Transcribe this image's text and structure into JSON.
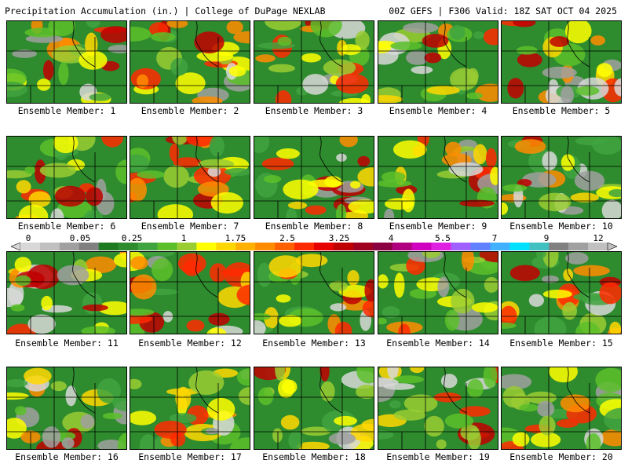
{
  "header": {
    "title_left": "Precipitation Accumulation (in.) | College of DuPage NEXLAB",
    "title_right": "00Z GEFS | F306 Valid: 18Z SAT OCT 04 2025"
  },
  "legend": {
    "tick_labels": [
      "0",
      "0.05",
      "0.25",
      "1",
      "1.75",
      "2.5",
      "3.25",
      "4",
      "5.5",
      "7",
      "9",
      "12"
    ],
    "colors": [
      "#d8d8d8",
      "#c0c0c0",
      "#a0a0a0",
      "#808080",
      "#1e7a1e",
      "#2e8b2e",
      "#3fa33f",
      "#5cbf2a",
      "#9acd32",
      "#ffff00",
      "#ffd700",
      "#ffb000",
      "#ff8c00",
      "#ff6000",
      "#ff2a00",
      "#e60000",
      "#c00000",
      "#a00020",
      "#8b0040",
      "#b00080",
      "#d000c0",
      "#e020e0",
      "#a060ff",
      "#6080ff",
      "#40b0ff",
      "#00e0ff",
      "#40c0c0",
      "#808080",
      "#a0a0a0",
      "#c0c0c0"
    ]
  },
  "panels": [
    {
      "label": "Ensemble Member: 1",
      "member": 1
    },
    {
      "label": "Ensemble Member: 2",
      "member": 2
    },
    {
      "label": "Ensemble Member: 3",
      "member": 3
    },
    {
      "label": "Ensemble Member: 4",
      "member": 4
    },
    {
      "label": "Ensemble Member: 5",
      "member": 5
    },
    {
      "label": "Ensemble Member: 6",
      "member": 6
    },
    {
      "label": "Ensemble Member: 7",
      "member": 7
    },
    {
      "label": "Ensemble Member: 8",
      "member": 8
    },
    {
      "label": "Ensemble Member: 9",
      "member": 9
    },
    {
      "label": "Ensemble Member: 10",
      "member": 10
    },
    {
      "label": "Ensemble Member: 11",
      "member": 11
    },
    {
      "label": "Ensemble Member: 12",
      "member": 12
    },
    {
      "label": "Ensemble Member: 13",
      "member": 13
    },
    {
      "label": "Ensemble Member: 14",
      "member": 14
    },
    {
      "label": "Ensemble Member: 15",
      "member": 15
    },
    {
      "label": "Ensemble Member: 16",
      "member": 16
    },
    {
      "label": "Ensemble Member: 17",
      "member": 17
    },
    {
      "label": "Ensemble Member: 18",
      "member": 18
    },
    {
      "label": "Ensemble Member: 19",
      "member": 19
    },
    {
      "label": "Ensemble Member: 20",
      "member": 20
    }
  ]
}
